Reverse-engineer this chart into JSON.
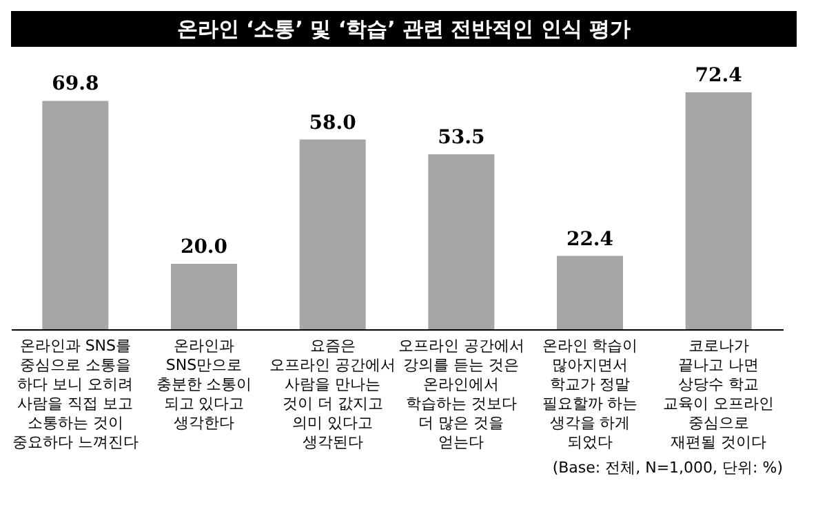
{
  "chart_data": {
    "type": "bar",
    "title": "온라인 ‘소통’ 및 ‘학습’ 관련 전반적인 인식 평가",
    "categories": [
      "온라인과 SNS를\n중심으로 소통을\n하다 보니 오히려\n사람을 직접 보고\n소통하는 것이\n중요하다 느껴진다",
      "온라인과\nSNS만으로\n충분한 소통이\n되고 있다고\n생각한다",
      "요즘은\n오프라인 공간에서\n사람을 만나는\n것이 더 값지고\n의미 있다고\n생각된다",
      "오프라인 공간에서\n강의를 듣는 것은\n온라인에서\n학습하는 것보다\n더 많은 것을\n얻는다",
      "온라인 학습이\n많아지면서\n학교가 정말\n필요할까 하는\n생각을 하게\n되었다",
      "코로나가\n끝나고 나면\n상당수 학교\n교육이 오프라인\n중심으로\n재편될 것이다"
    ],
    "values": [
      69.8,
      20.0,
      58.0,
      53.5,
      22.4,
      72.4
    ],
    "value_labels": [
      "69.8",
      "20.0",
      "58.0",
      "53.5",
      "22.4",
      "72.4"
    ],
    "color": "#a6a6a6",
    "annotations": [
      "(Base: 전체, N=1,000, 단위: %)"
    ]
  }
}
